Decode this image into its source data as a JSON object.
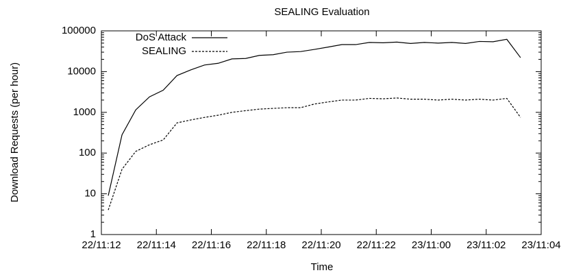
{
  "chart_data": {
    "type": "line",
    "title": "SEALING Evaluation",
    "x_label": "Time",
    "y_label": "Download Requests (per hour)",
    "x": [
      0.25,
      0.75,
      1.25,
      1.75,
      2.25,
      2.75,
      3.25,
      3.75,
      4.25,
      4.75,
      5.25,
      5.75,
      6.25,
      6.75,
      7.25,
      7.75,
      8.25,
      8.75,
      9.25,
      9.75,
      10.25,
      10.75,
      11.25,
      11.75,
      12.25,
      12.75,
      13.25,
      13.75,
      14.25,
      14.75,
      15.25
    ],
    "series": [
      {
        "name": "DoS Attack",
        "color": "#000000",
        "dash": "solid",
        "values": [
          9,
          280,
          1150,
          2400,
          3500,
          8000,
          11000,
          14500,
          16000,
          20500,
          21000,
          25000,
          26000,
          30000,
          31000,
          35000,
          40000,
          46000,
          46000,
          52000,
          51000,
          53000,
          49000,
          52000,
          50000,
          52000,
          49000,
          55000,
          54000,
          62000,
          22000
        ]
      },
      {
        "name": "SEALING",
        "color": "#000000",
        "dash": "dashed",
        "values": [
          4,
          40,
          110,
          160,
          210,
          550,
          650,
          750,
          850,
          1000,
          1100,
          1200,
          1250,
          1300,
          1300,
          1600,
          1800,
          2000,
          2000,
          2200,
          2150,
          2250,
          2100,
          2100,
          2000,
          2100,
          2000,
          2100,
          2000,
          2200,
          750
        ]
      }
    ],
    "xlim": [
      0,
      16
    ],
    "xticks": [
      {
        "value": 0,
        "label": "22/11:12"
      },
      {
        "value": 2,
        "label": "22/11:14"
      },
      {
        "value": 4,
        "label": "22/11:16"
      },
      {
        "value": 6,
        "label": "22/11:18"
      },
      {
        "value": 8,
        "label": "22/11:20"
      },
      {
        "value": 10,
        "label": "22/11:22"
      },
      {
        "value": 12,
        "label": "23/11:00"
      },
      {
        "value": 14,
        "label": "23/11:02"
      },
      {
        "value": 16,
        "label": "23/11:04"
      }
    ],
    "ylim": [
      1,
      100000
    ],
    "yticks": [
      1,
      10,
      100,
      1000,
      10000,
      100000
    ],
    "y_scale": "log",
    "legend": "top-left"
  }
}
